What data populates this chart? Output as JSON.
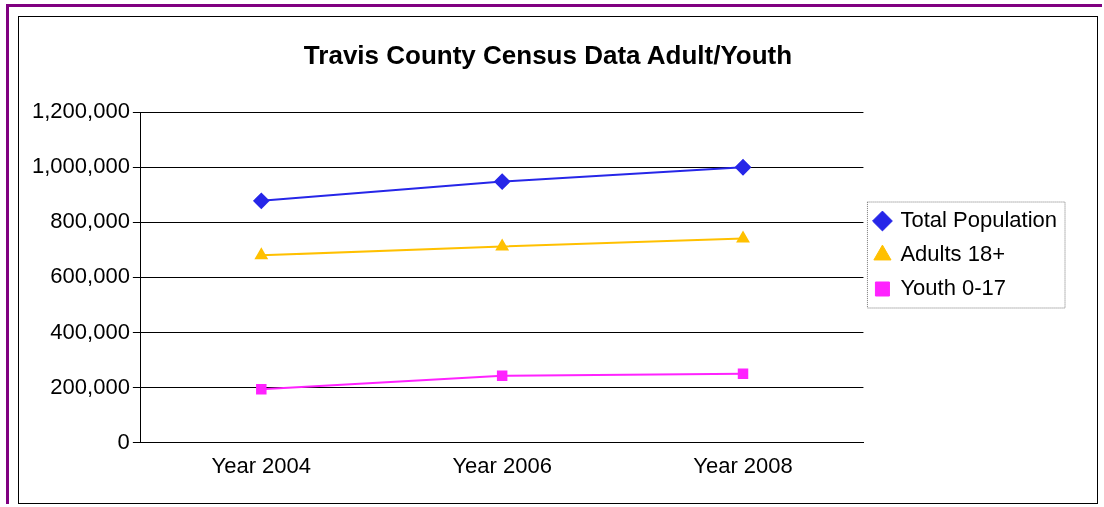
{
  "chart_data": {
    "type": "line",
    "title": "Travis County Census Data Adult/Youth",
    "categories": [
      "Year 2004",
      "Year 2006",
      "Year 2008"
    ],
    "series": [
      {
        "name": "Total Population",
        "color": "#2626e8",
        "marker": "diamond",
        "values": [
          878000,
          948000,
          1000000
        ]
      },
      {
        "name": "Adults 18+",
        "color": "#ffc000",
        "marker": "triangle",
        "values": [
          680000,
          712000,
          741000
        ]
      },
      {
        "name": "Youth 0-17",
        "color": "#ff22ff",
        "marker": "square",
        "values": [
          194000,
          243000,
          250000
        ]
      }
    ],
    "ylim": [
      0,
      1200000
    ],
    "yticks": [
      0,
      {
        "value": 200000,
        "label": "200,000"
      },
      {
        "value": 400000,
        "label": "400,000"
      },
      {
        "value": 600000,
        "label": "600,000"
      },
      {
        "value": 800000,
        "label": "800,000"
      },
      {
        "value": 1000000,
        "label": "1,000,000"
      },
      {
        "value": 1200000,
        "label": "1,200,000"
      }
    ],
    "grid": "y",
    "legend": "right"
  }
}
